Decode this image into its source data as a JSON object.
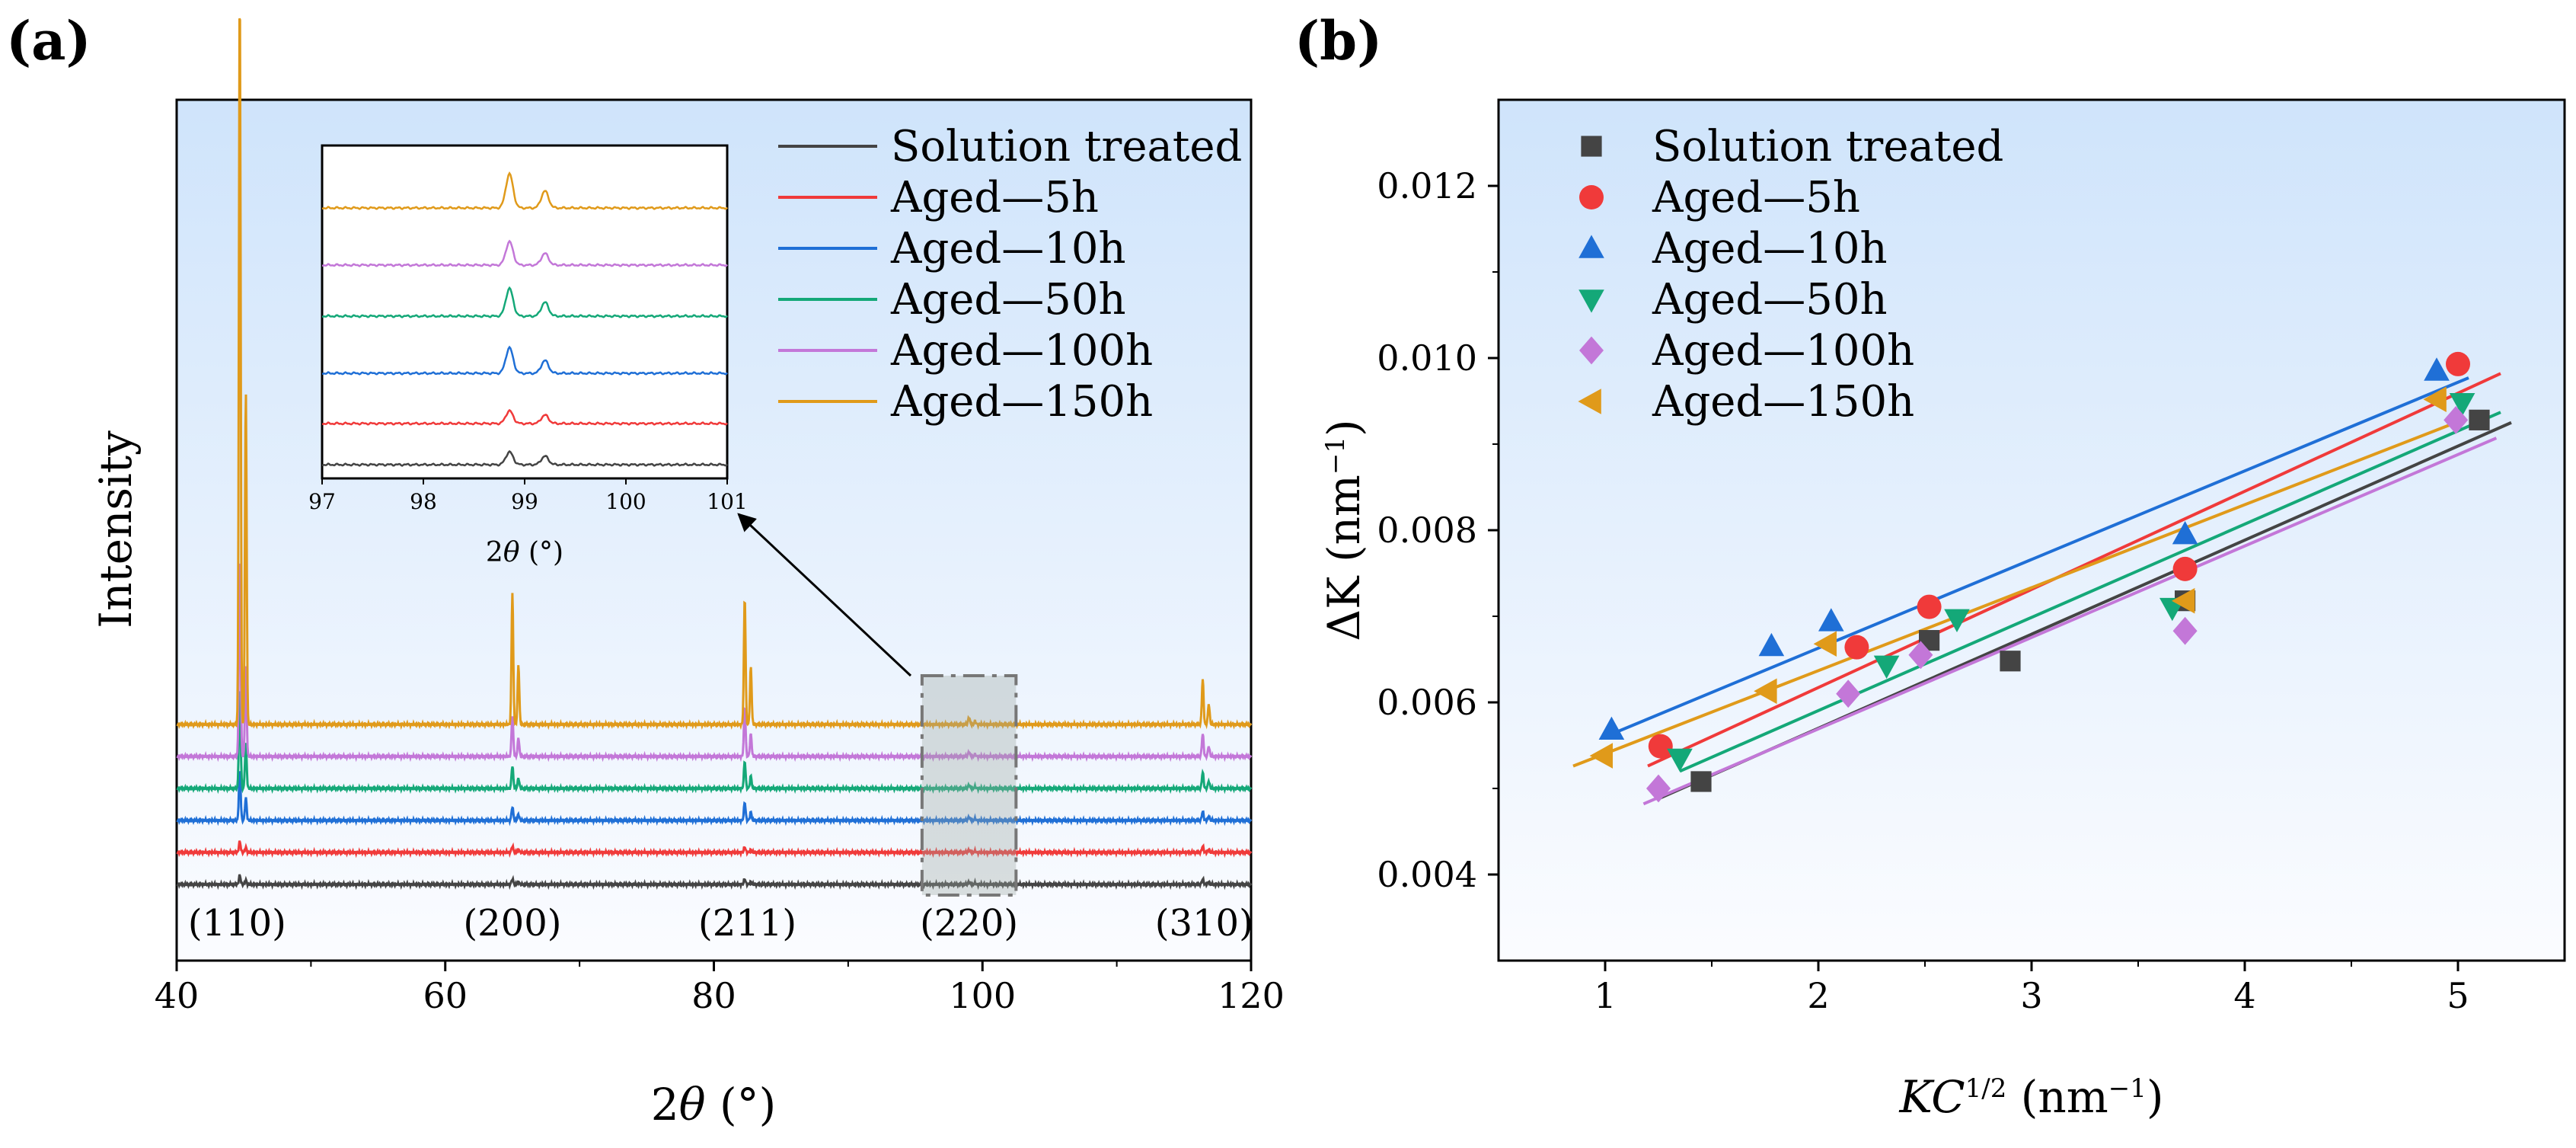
{
  "colors": {
    "solution": "#444444",
    "aged5": "#f03a3a",
    "aged10": "#1f6fd6",
    "aged50": "#14a878",
    "aged100": "#c377d8",
    "aged150": "#e09a1a",
    "bg_top": "#cfe4fb",
    "bg_bottom": "#fbfcff"
  },
  "chart_data": [
    {
      "type": "line",
      "panel_label": "(a)",
      "xlabel_prefix": "2",
      "xlabel_theta": "θ",
      "xlabel_suffix": " (°)",
      "ylabel": "Intensity",
      "xlim": [
        40,
        120
      ],
      "x_ticks": [
        "40",
        "60",
        "80",
        "100",
        "120"
      ],
      "x_tick_values": [
        40,
        60,
        80,
        100,
        120
      ],
      "peaks": [
        44.7,
        65.0,
        82.3,
        99.0,
        116.4
      ],
      "peak_labels": [
        "(110)",
        "(200)",
        "(211)",
        "(220)",
        "(310)"
      ],
      "peak_label_positions": [
        44.5,
        65.0,
        82.5,
        99.0,
        116.5
      ],
      "series": [
        {
          "name": "Solution treated",
          "color_key": "solution",
          "offset": 0.0,
          "peak_heights": [
            0.1,
            0.06,
            0.06,
            0.03,
            0.06
          ]
        },
        {
          "name": "Aged—5h",
          "color_key": "aged5",
          "offset": 0.35,
          "peak_heights": [
            0.12,
            0.07,
            0.06,
            0.03,
            0.07
          ]
        },
        {
          "name": "Aged—10h",
          "color_key": "aged10",
          "offset": 0.7,
          "peak_heights": [
            0.55,
            0.15,
            0.2,
            0.04,
            0.1
          ]
        },
        {
          "name": "Aged—50h",
          "color_key": "aged50",
          "offset": 1.05,
          "peak_heights": [
            1.1,
            0.25,
            0.3,
            0.04,
            0.18
          ]
        },
        {
          "name": "Aged—100h",
          "color_key": "aged100",
          "offset": 1.4,
          "peak_heights": [
            2.2,
            0.45,
            0.55,
            0.05,
            0.25
          ]
        },
        {
          "name": "Aged—150h",
          "color_key": "aged150",
          "offset": 1.75,
          "peak_heights": [
            8.1,
            1.45,
            1.4,
            0.08,
            0.5
          ]
        }
      ],
      "inset": {
        "xlabel_prefix": "2",
        "xlabel_theta": "θ",
        "xlabel_suffix": " (°)",
        "xlim": [
          97,
          101
        ],
        "x_ticks": [
          "97",
          "98",
          "99",
          "100",
          "101"
        ],
        "x_tick_values": [
          97,
          98,
          99,
          100,
          101
        ],
        "peak_positions": [
          98.85,
          99.2
        ],
        "peak_heights": [
          [
            0.6,
            0.4
          ],
          [
            0.6,
            0.4
          ],
          [
            1.2,
            0.6
          ],
          [
            1.3,
            0.65
          ],
          [
            1.1,
            0.55
          ],
          [
            1.6,
            0.8
          ]
        ]
      },
      "highlight_box_range": [
        95.5,
        102.5
      ]
    },
    {
      "type": "scatter",
      "panel_label": "(b)",
      "xlabel_main": "KC",
      "xlabel_sup": "1/2",
      "xlabel_unit": " (nm",
      "xlabel_unit_sup": "−1",
      "xlabel_close": ")",
      "ylabel_main": "ΔK",
      "ylabel_unit": " (nm",
      "ylabel_unit_sup": "−1",
      "ylabel_close": ")",
      "xlim": [
        0.5,
        5.5
      ],
      "ylim": [
        0.003,
        0.013
      ],
      "x_ticks": [
        "1",
        "2",
        "3",
        "4",
        "5"
      ],
      "x_tick_values": [
        1,
        2,
        3,
        4,
        5
      ],
      "y_ticks": [
        "0.004",
        "0.006",
        "0.008",
        "0.010",
        "0.012"
      ],
      "y_tick_values": [
        0.004,
        0.006,
        0.008,
        0.01,
        0.012
      ],
      "series": [
        {
          "name": "Solution treated",
          "color_key": "solution",
          "marker": "square",
          "x": [
            1.45,
            2.52,
            2.9,
            3.72,
            5.1
          ],
          "y": [
            0.00508,
            0.00672,
            0.00648,
            0.00718,
            0.00928
          ],
          "fit_x": [
            1.25,
            5.25
          ],
          "fit_y": [
            0.00488,
            0.00925
          ]
        },
        {
          "name": "Aged—5h",
          "color_key": "aged5",
          "marker": "circle",
          "x": [
            1.26,
            2.18,
            2.52,
            3.72,
            5.0
          ],
          "y": [
            0.00549,
            0.00664,
            0.00711,
            0.00755,
            0.00993
          ],
          "fit_x": [
            1.2,
            5.2
          ],
          "fit_y": [
            0.00526,
            0.00982
          ]
        },
        {
          "name": "Aged—10h",
          "color_key": "aged10",
          "marker": "triangle-up",
          "x": [
            1.03,
            1.78,
            2.06,
            3.72,
            4.9
          ],
          "y": [
            0.00568,
            0.00665,
            0.00694,
            0.00795,
            0.00985
          ],
          "fit_x": [
            0.98,
            5.05
          ],
          "fit_y": [
            0.00558,
            0.00977
          ]
        },
        {
          "name": "Aged—50h",
          "color_key": "aged50",
          "marker": "triangle-down",
          "x": [
            1.35,
            2.32,
            2.65,
            3.66,
            5.02
          ],
          "y": [
            0.00535,
            0.00643,
            0.00697,
            0.0071,
            0.00948
          ],
          "fit_x": [
            1.35,
            5.2
          ],
          "fit_y": [
            0.0052,
            0.00937
          ]
        },
        {
          "name": "Aged—100h",
          "color_key": "aged100",
          "marker": "diamond",
          "x": [
            1.25,
            2.14,
            2.48,
            3.72,
            4.99
          ],
          "y": [
            0.005,
            0.0061,
            0.00655,
            0.00683,
            0.00928
          ],
          "fit_x": [
            1.18,
            5.18
          ],
          "fit_y": [
            0.00482,
            0.00907
          ]
        },
        {
          "name": "Aged—150h",
          "color_key": "aged150",
          "marker": "triangle-left",
          "x": [
            0.99,
            1.76,
            2.04,
            3.72,
            4.9
          ],
          "y": [
            0.00538,
            0.00613,
            0.00668,
            0.00718,
            0.00952
          ],
          "fit_x": [
            0.85,
            5.0
          ],
          "fit_y": [
            0.00526,
            0.00926
          ]
        }
      ]
    }
  ]
}
